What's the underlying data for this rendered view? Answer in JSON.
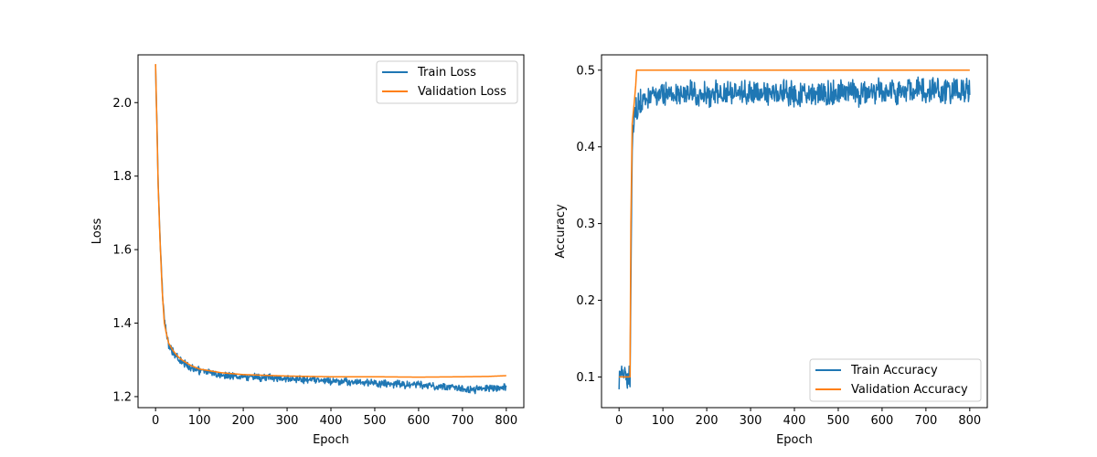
{
  "chart_data": [
    {
      "type": "line",
      "title": "",
      "xlabel": "Epoch",
      "ylabel": "Loss",
      "xlim": [
        -40,
        840
      ],
      "ylim": [
        1.17,
        2.13
      ],
      "xticks": [
        0,
        100,
        200,
        300,
        400,
        500,
        600,
        700,
        800
      ],
      "yticks": [
        1.2,
        1.4,
        1.6,
        1.8,
        2.0
      ],
      "ytick_decimals": 1,
      "legend": "top-right",
      "series": [
        {
          "name": "Train Loss",
          "color": "#1f77b4",
          "noise": 0.008,
          "x": [
            0,
            3,
            6,
            10,
            15,
            20,
            25,
            30,
            40,
            50,
            60,
            80,
            100,
            150,
            200,
            300,
            400,
            500,
            600,
            650,
            700,
            720,
            760,
            800
          ],
          "y": [
            2.1,
            1.95,
            1.78,
            1.64,
            1.5,
            1.41,
            1.37,
            1.34,
            1.32,
            1.305,
            1.295,
            1.28,
            1.27,
            1.26,
            1.255,
            1.248,
            1.242,
            1.236,
            1.232,
            1.228,
            1.222,
            1.218,
            1.222,
            1.226
          ]
        },
        {
          "name": "Validation Loss",
          "color": "#ff7f0e",
          "noise": 0,
          "x": [
            0,
            3,
            6,
            10,
            15,
            20,
            25,
            30,
            40,
            50,
            60,
            80,
            100,
            150,
            200,
            300,
            400,
            500,
            600,
            700,
            760,
            800
          ],
          "y": [
            2.105,
            1.94,
            1.77,
            1.63,
            1.49,
            1.4,
            1.37,
            1.345,
            1.325,
            1.31,
            1.3,
            1.285,
            1.275,
            1.265,
            1.26,
            1.256,
            1.254,
            1.254,
            1.253,
            1.254,
            1.255,
            1.257
          ]
        }
      ]
    },
    {
      "type": "line",
      "title": "",
      "xlabel": "Epoch",
      "ylabel": "Accuracy",
      "xlim": [
        -40,
        840
      ],
      "ylim": [
        0.06,
        0.52
      ],
      "xticks": [
        0,
        100,
        200,
        300,
        400,
        500,
        600,
        700,
        800
      ],
      "yticks": [
        0.1,
        0.2,
        0.3,
        0.4,
        0.5
      ],
      "ytick_decimals": 1,
      "legend": "bottom-right",
      "series": [
        {
          "name": "Train Accuracy",
          "color": "#1f77b4",
          "noise": 0.013,
          "x": [
            0,
            5,
            10,
            15,
            20,
            25,
            26,
            28,
            30,
            32,
            35,
            40,
            50,
            60,
            100,
            200,
            300,
            400,
            500,
            600,
            700,
            800
          ],
          "y": [
            0.1,
            0.1,
            0.1,
            0.1,
            0.1,
            0.1,
            0.16,
            0.3,
            0.4,
            0.43,
            0.44,
            0.45,
            0.46,
            0.465,
            0.47,
            0.47,
            0.47,
            0.47,
            0.47,
            0.472,
            0.474,
            0.475
          ]
        },
        {
          "name": "Validation Accuracy",
          "color": "#ff7f0e",
          "noise": 0,
          "x": [
            0,
            25,
            27,
            30,
            35,
            38,
            40,
            800
          ],
          "y": [
            0.1,
            0.1,
            0.3,
            0.43,
            0.46,
            0.48,
            0.5,
            0.5
          ]
        }
      ]
    }
  ]
}
